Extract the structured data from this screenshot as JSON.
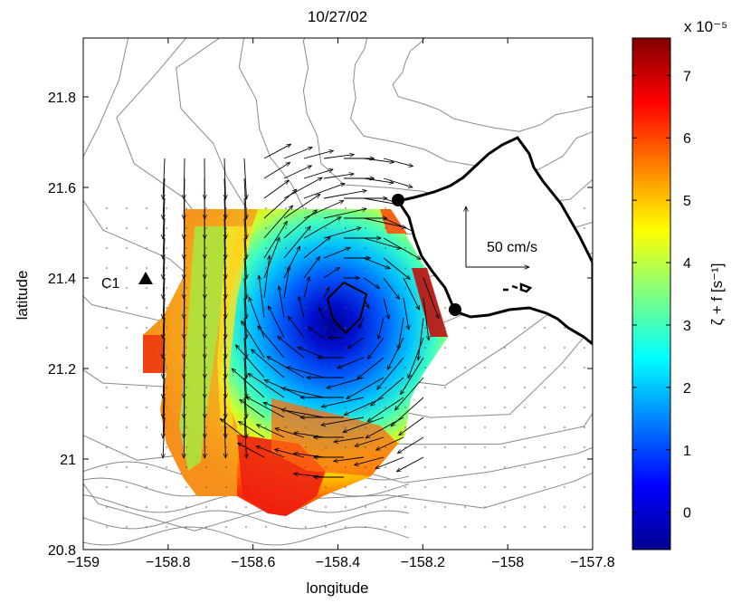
{
  "chart_data": {
    "type": "heatmap",
    "title": "10/27/02",
    "xlabel": "longitude",
    "ylabel": "latitude",
    "xlim": [
      -159,
      -157.8
    ],
    "ylim": [
      20.8,
      21.93
    ],
    "xticks": [
      "−159",
      "−158.8",
      "−158.6",
      "−158.4",
      "−158.2",
      "−158",
      "−157.8"
    ],
    "xtick_values": [
      -159,
      -158.8,
      -158.6,
      -158.4,
      -158.2,
      -158,
      -157.8
    ],
    "yticks": [
      "20.8",
      "21",
      "21.2",
      "21.4",
      "21.6",
      "21.8"
    ],
    "ytick_values": [
      20.8,
      21.0,
      21.2,
      21.4,
      21.6,
      21.8
    ],
    "colorbar": {
      "label": "ζ + f [s⁻¹]",
      "multiplier": "x 10⁻⁵",
      "range": [
        -0.6,
        7.6
      ],
      "ticks": [
        "0",
        "1",
        "2",
        "3",
        "4",
        "5",
        "6",
        "7"
      ],
      "tick_values": [
        0,
        1,
        2,
        3,
        4,
        5,
        6,
        7
      ],
      "colormap": "jet"
    },
    "eddy_center": {
      "lon": -158.38,
      "lat": 21.34,
      "min_value": -0.5
    },
    "station": {
      "label": "C1",
      "lon": -158.85,
      "lat": 21.39
    },
    "coast_points": [
      {
        "lon": -158.27,
        "lat": 21.57
      },
      {
        "lon": -158.11,
        "lat": 21.33
      }
    ],
    "scale_vector": {
      "label": "50 cm/s",
      "value_cm_s": 50
    }
  }
}
